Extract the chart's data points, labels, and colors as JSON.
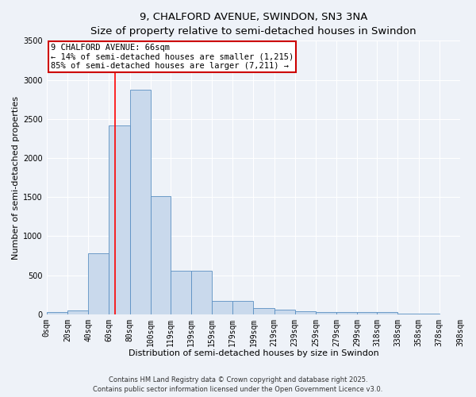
{
  "title_line1": "9, CHALFORD AVENUE, SWINDON, SN3 3NA",
  "title_line2": "Size of property relative to semi-detached houses in Swindon",
  "xlabel": "Distribution of semi-detached houses by size in Swindon",
  "ylabel": "Number of semi-detached properties",
  "annotation_title": "9 CHALFORD AVENUE: 66sqm",
  "annotation_line2": "← 14% of semi-detached houses are smaller (1,215)",
  "annotation_line3": "85% of semi-detached houses are larger (7,211) →",
  "bin_labels": [
    "0sqm",
    "20sqm",
    "40sqm",
    "60sqm",
    "80sqm",
    "100sqm",
    "119sqm",
    "139sqm",
    "159sqm",
    "179sqm",
    "199sqm",
    "219sqm",
    "239sqm",
    "259sqm",
    "279sqm",
    "299sqm",
    "318sqm",
    "338sqm",
    "358sqm",
    "378sqm",
    "398sqm"
  ],
  "bin_edges": [
    0,
    20,
    40,
    60,
    80,
    100,
    119,
    139,
    159,
    179,
    199,
    219,
    239,
    259,
    279,
    299,
    318,
    338,
    358,
    378,
    398
  ],
  "bar_heights": [
    30,
    50,
    780,
    2420,
    2870,
    1510,
    560,
    560,
    170,
    170,
    80,
    60,
    40,
    30,
    30,
    30,
    30,
    5,
    3,
    2,
    1
  ],
  "bar_color": "#c9d9ec",
  "bar_edge_color": "#5a8fc2",
  "red_line_x": 66,
  "ylim": [
    0,
    3500
  ],
  "yticks": [
    0,
    500,
    1000,
    1500,
    2000,
    2500,
    3000,
    3500
  ],
  "bg_color": "#eef2f8",
  "grid_color": "#ffffff",
  "annotation_box_color": "#ffffff",
  "annotation_box_edge": "#cc0000",
  "title_fontsize": 9.5,
  "subtitle_fontsize": 8.5,
  "axis_label_fontsize": 8,
  "tick_fontsize": 7,
  "annotation_fontsize": 7.5,
  "footer_line1": "Contains HM Land Registry data © Crown copyright and database right 2025.",
  "footer_line2": "Contains public sector information licensed under the Open Government Licence v3.0."
}
